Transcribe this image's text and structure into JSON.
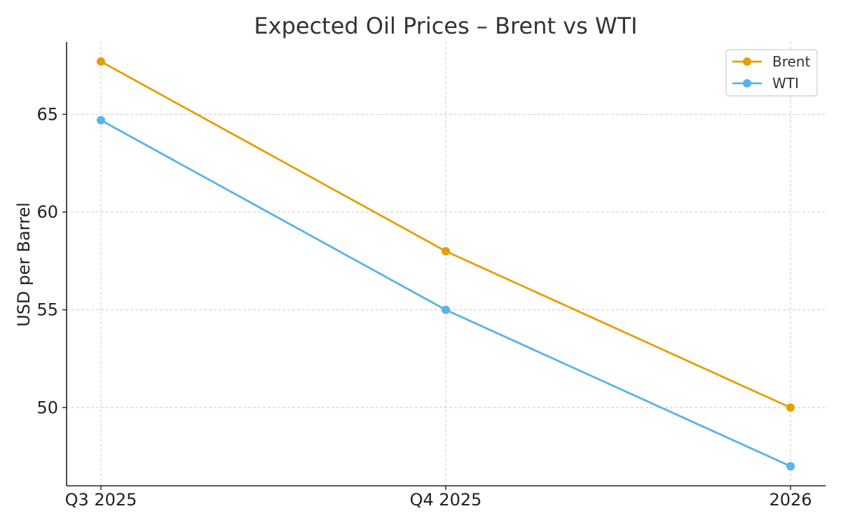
{
  "chart_data": {
    "type": "line",
    "title": "Expected Oil Prices – Brent vs WTI",
    "xlabel": "",
    "ylabel": "USD per Barrel",
    "categories": [
      "Q3 2025",
      "Q4 2025",
      "2026"
    ],
    "yticks": [
      50,
      55,
      60,
      65
    ],
    "ylim": [
      46,
      68.7
    ],
    "grid": true,
    "legend_position": "top-right",
    "series": [
      {
        "name": "Brent",
        "color": "#E69F00",
        "values": [
          67.7,
          58.0,
          50.0
        ]
      },
      {
        "name": "WTI",
        "color": "#56B4E9",
        "values": [
          64.7,
          55.0,
          47.0
        ]
      }
    ]
  }
}
